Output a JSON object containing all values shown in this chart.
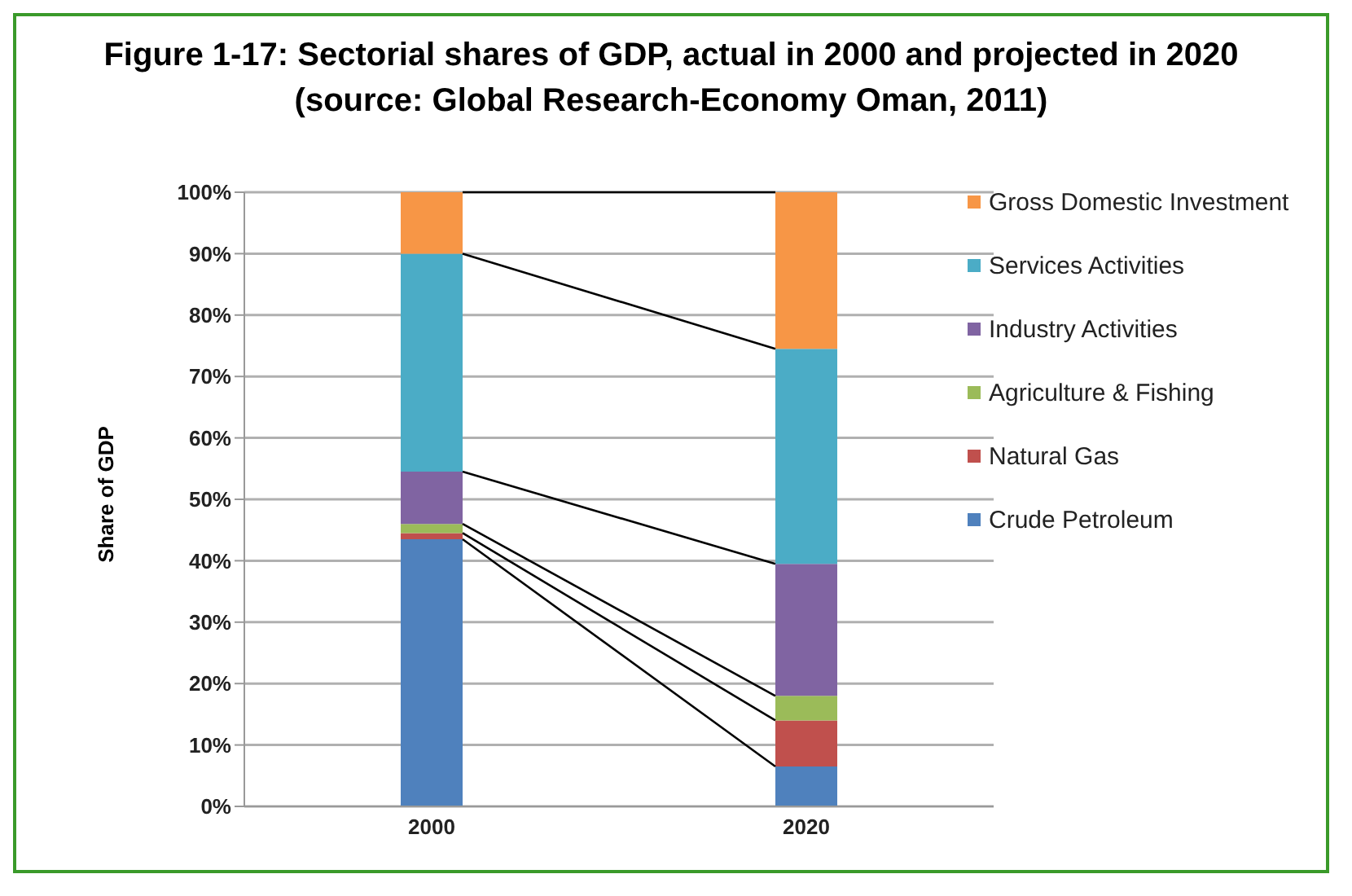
{
  "chart_data": {
    "type": "bar",
    "stacked": true,
    "title": "Figure 1-17: Sectorial shares of GDP, actual in 2000 and projected in 2020 (source: Global Research-Economy Oman, 2011)",
    "ylabel": "Share of GDP",
    "categories": [
      "2000",
      "2020"
    ],
    "series": [
      {
        "name": "Crude Petroleum",
        "color": "#4f81bd",
        "values": [
          43.5,
          6.5
        ]
      },
      {
        "name": "Natural Gas",
        "color": "#c0504d",
        "values": [
          1,
          7.5
        ]
      },
      {
        "name": "Agriculture & Fishing",
        "color": "#9bbb59",
        "values": [
          1.5,
          4
        ]
      },
      {
        "name": "Industry Activities",
        "color": "#8064a2",
        "values": [
          8.5,
          21.5
        ]
      },
      {
        "name": "Services Activities",
        "color": "#4bacc6",
        "values": [
          35.5,
          35
        ]
      },
      {
        "name": "Gross Domestic Investment",
        "color": "#f79646",
        "values": [
          10,
          25.5
        ]
      }
    ],
    "ylim": [
      0,
      100
    ],
    "yticks": [
      {
        "value": 0,
        "label": "0%"
      },
      {
        "value": 10,
        "label": "10%"
      },
      {
        "value": 20,
        "label": "20%"
      },
      {
        "value": 30,
        "label": "30%"
      },
      {
        "value": 40,
        "label": "40%"
      },
      {
        "value": 50,
        "label": "50%"
      },
      {
        "value": 60,
        "label": "60%"
      },
      {
        "value": 70,
        "label": "70%"
      },
      {
        "value": 80,
        "label": "80%"
      },
      {
        "value": 90,
        "label": "90%"
      },
      {
        "value": 100,
        "label": "100%"
      }
    ],
    "grid": "y",
    "legend": "right"
  }
}
